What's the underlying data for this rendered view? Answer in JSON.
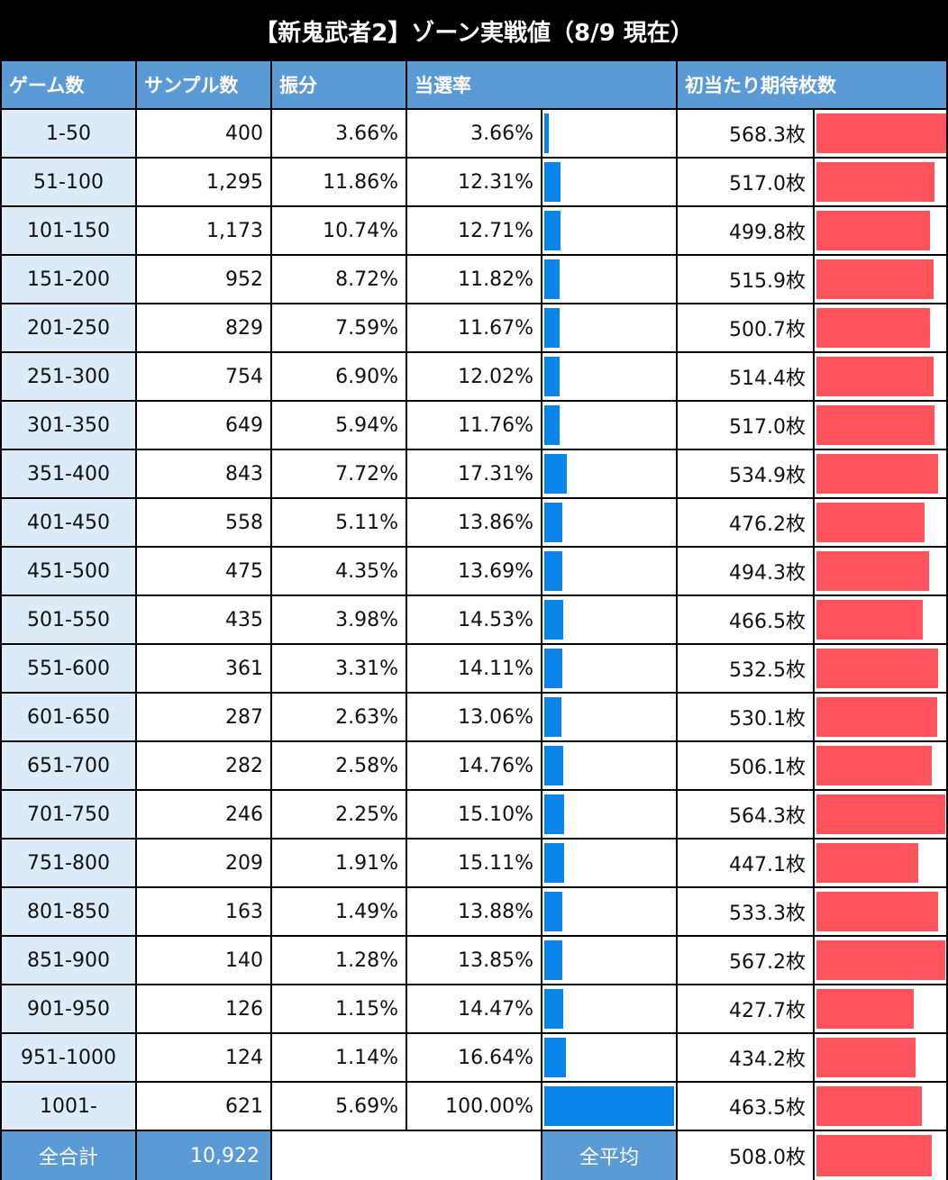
{
  "title": "【新鬼武者2】ゾーン実戦値（8/9 現在）",
  "headers": {
    "zone": "ゲーム数",
    "samples": "サンプル数",
    "distribution": "振分",
    "hit_rate": "当選率",
    "expected_coins": "初当たり期待枚数"
  },
  "totals": {
    "total_label": "全合計",
    "total_samples": "10,922",
    "avg_label": "全平均",
    "avg_coins": "508.0枚"
  },
  "colors": {
    "header": "#5b9bd5",
    "zone_cell": "#ddebf7",
    "hit_bar": "#0a86ea",
    "coin_bar": "#fe525c"
  },
  "chart_data": {
    "type": "table",
    "rows": [
      {
        "zone": "1-50",
        "samples": "400",
        "dist": "3.66%",
        "rate": "3.66%",
        "coins": "568.3枚",
        "rate_value": 3.66,
        "coin_value": 568.3
      },
      {
        "zone": "51-100",
        "samples": "1,295",
        "dist": "11.86%",
        "rate": "12.31%",
        "coins": "517.0枚",
        "rate_value": 12.31,
        "coin_value": 517.0
      },
      {
        "zone": "101-150",
        "samples": "1,173",
        "dist": "10.74%",
        "rate": "12.71%",
        "coins": "499.8枚",
        "rate_value": 12.71,
        "coin_value": 499.8
      },
      {
        "zone": "151-200",
        "samples": "952",
        "dist": "8.72%",
        "rate": "11.82%",
        "coins": "515.9枚",
        "rate_value": 11.82,
        "coin_value": 515.9
      },
      {
        "zone": "201-250",
        "samples": "829",
        "dist": "7.59%",
        "rate": "11.67%",
        "coins": "500.7枚",
        "rate_value": 11.67,
        "coin_value": 500.7
      },
      {
        "zone": "251-300",
        "samples": "754",
        "dist": "6.90%",
        "rate": "12.02%",
        "coins": "514.4枚",
        "rate_value": 12.02,
        "coin_value": 514.4
      },
      {
        "zone": "301-350",
        "samples": "649",
        "dist": "5.94%",
        "rate": "11.76%",
        "coins": "517.0枚",
        "rate_value": 11.76,
        "coin_value": 517.0
      },
      {
        "zone": "351-400",
        "samples": "843",
        "dist": "7.72%",
        "rate": "17.31%",
        "coins": "534.9枚",
        "rate_value": 17.31,
        "coin_value": 534.9
      },
      {
        "zone": "401-450",
        "samples": "558",
        "dist": "5.11%",
        "rate": "13.86%",
        "coins": "476.2枚",
        "rate_value": 13.86,
        "coin_value": 476.2
      },
      {
        "zone": "451-500",
        "samples": "475",
        "dist": "4.35%",
        "rate": "13.69%",
        "coins": "494.3枚",
        "rate_value": 13.69,
        "coin_value": 494.3
      },
      {
        "zone": "501-550",
        "samples": "435",
        "dist": "3.98%",
        "rate": "14.53%",
        "coins": "466.5枚",
        "rate_value": 14.53,
        "coin_value": 466.5
      },
      {
        "zone": "551-600",
        "samples": "361",
        "dist": "3.31%",
        "rate": "14.11%",
        "coins": "532.5枚",
        "rate_value": 14.11,
        "coin_value": 532.5
      },
      {
        "zone": "601-650",
        "samples": "287",
        "dist": "2.63%",
        "rate": "13.06%",
        "coins": "530.1枚",
        "rate_value": 13.06,
        "coin_value": 530.1
      },
      {
        "zone": "651-700",
        "samples": "282",
        "dist": "2.58%",
        "rate": "14.76%",
        "coins": "506.1枚",
        "rate_value": 14.76,
        "coin_value": 506.1
      },
      {
        "zone": "701-750",
        "samples": "246",
        "dist": "2.25%",
        "rate": "15.10%",
        "coins": "564.3枚",
        "rate_value": 15.1,
        "coin_value": 564.3
      },
      {
        "zone": "751-800",
        "samples": "209",
        "dist": "1.91%",
        "rate": "15.11%",
        "coins": "447.1枚",
        "rate_value": 15.11,
        "coin_value": 447.1
      },
      {
        "zone": "801-850",
        "samples": "163",
        "dist": "1.49%",
        "rate": "13.88%",
        "coins": "533.3枚",
        "rate_value": 13.88,
        "coin_value": 533.3
      },
      {
        "zone": "851-900",
        "samples": "140",
        "dist": "1.28%",
        "rate": "13.85%",
        "coins": "567.2枚",
        "rate_value": 13.85,
        "coin_value": 567.2
      },
      {
        "zone": "901-950",
        "samples": "126",
        "dist": "1.15%",
        "rate": "14.47%",
        "coins": "427.7枚",
        "rate_value": 14.47,
        "coin_value": 427.7
      },
      {
        "zone": "951-1000",
        "samples": "124",
        "dist": "1.14%",
        "rate": "16.64%",
        "coins": "434.2枚",
        "rate_value": 16.64,
        "coin_value": 434.2
      },
      {
        "zone": "1001-",
        "samples": "621",
        "dist": "5.69%",
        "rate": "100.00%",
        "coins": "463.5枚",
        "rate_value": 100.0,
        "coin_value": 463.5
      }
    ],
    "avg_coin_value": 508.0
  }
}
